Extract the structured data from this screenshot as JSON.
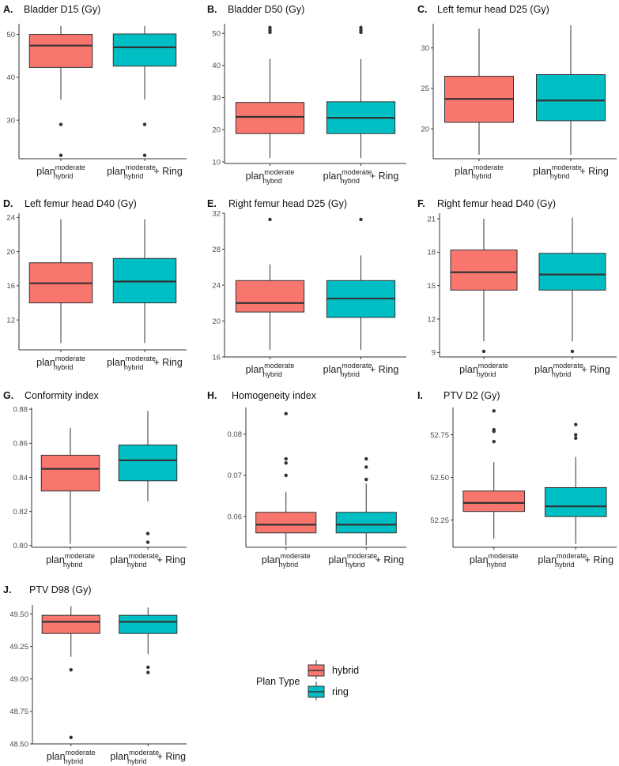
{
  "chart_data": [
    {
      "id": "A",
      "type": "box",
      "title": "Bladder D15 (Gy)",
      "ylim": [
        21,
        52.5
      ],
      "ticks": [
        30,
        40,
        50
      ],
      "groups": [
        {
          "series": "hybrid",
          "q1": 42.3,
          "median": 47.4,
          "q3": 50.0,
          "lower": 34.8,
          "upper": 52.0,
          "outliers": [
            29.0,
            21.8
          ]
        },
        {
          "series": "ring",
          "q1": 42.6,
          "median": 47.0,
          "q3": 50.1,
          "lower": 34.8,
          "upper": 52.0,
          "outliers": [
            29.0,
            21.8
          ]
        }
      ]
    },
    {
      "id": "B",
      "type": "box",
      "title": "Bladder D50 (Gy)",
      "ylim": [
        9.5,
        53
      ],
      "ticks": [
        10,
        20,
        30,
        40,
        50
      ],
      "groups": [
        {
          "series": "hybrid",
          "q1": 18.8,
          "median": 24.0,
          "q3": 28.5,
          "lower": 11.2,
          "upper": 42.0,
          "outliers": [
            50.3,
            51.0,
            51.8
          ]
        },
        {
          "series": "ring",
          "q1": 18.8,
          "median": 23.7,
          "q3": 28.7,
          "lower": 11.2,
          "upper": 42.0,
          "outliers": [
            50.3,
            51.0,
            51.8
          ]
        }
      ]
    },
    {
      "id": "C",
      "type": "box",
      "title": "Left femur head D25 (Gy)",
      "ylim": [
        16.3,
        33
      ],
      "ticks": [
        20,
        25,
        30
      ],
      "groups": [
        {
          "series": "hybrid",
          "q1": 20.8,
          "median": 23.7,
          "q3": 26.5,
          "lower": 16.8,
          "upper": 32.4,
          "outliers": []
        },
        {
          "series": "ring",
          "q1": 21.0,
          "median": 23.5,
          "q3": 26.7,
          "lower": 16.8,
          "upper": 32.8,
          "outliers": []
        }
      ]
    },
    {
      "id": "D",
      "type": "box",
      "title": "Left femur head D40 (Gy)",
      "ylim": [
        8.5,
        24.5
      ],
      "ticks": [
        12,
        16,
        20,
        24
      ],
      "groups": [
        {
          "series": "hybrid",
          "q1": 14.0,
          "median": 16.3,
          "q3": 18.7,
          "lower": 9.3,
          "upper": 23.8,
          "outliers": []
        },
        {
          "series": "ring",
          "q1": 14.0,
          "median": 16.5,
          "q3": 19.2,
          "lower": 9.3,
          "upper": 23.8,
          "outliers": []
        }
      ]
    },
    {
      "id": "E",
      "type": "box",
      "title": "Right femur head D25 (Gy)",
      "ylim": [
        16,
        32
      ],
      "ticks": [
        16,
        20,
        24,
        28,
        32
      ],
      "groups": [
        {
          "series": "hybrid",
          "q1": 21.0,
          "median": 22.0,
          "q3": 24.5,
          "lower": 16.8,
          "upper": 26.3,
          "outliers": [
            31.3
          ]
        },
        {
          "series": "ring",
          "q1": 20.4,
          "median": 22.5,
          "q3": 24.5,
          "lower": 16.8,
          "upper": 27.3,
          "outliers": [
            31.3
          ]
        }
      ]
    },
    {
      "id": "F",
      "type": "box",
      "title": "Right femur head D40 (Gy)",
      "ylim": [
        8.6,
        21.5
      ],
      "ticks": [
        9,
        12,
        15,
        18,
        21
      ],
      "groups": [
        {
          "series": "hybrid",
          "q1": 14.6,
          "median": 16.2,
          "q3": 18.2,
          "lower": 10.0,
          "upper": 21.0,
          "outliers": [
            9.1
          ]
        },
        {
          "series": "ring",
          "q1": 14.6,
          "median": 16.0,
          "q3": 17.9,
          "lower": 10.0,
          "upper": 21.1,
          "outliers": [
            9.1
          ]
        }
      ]
    },
    {
      "id": "G",
      "type": "box",
      "title": "Conformity index",
      "ylim": [
        0.799,
        0.881
      ],
      "ticks": [
        0.8,
        0.82,
        0.84,
        0.86,
        0.88
      ],
      "groups": [
        {
          "series": "hybrid",
          "q1": 0.832,
          "median": 0.845,
          "q3": 0.853,
          "lower": 0.801,
          "upper": 0.869,
          "outliers": []
        },
        {
          "series": "ring",
          "q1": 0.838,
          "median": 0.85,
          "q3": 0.859,
          "lower": 0.826,
          "upper": 0.879,
          "outliers": [
            0.807,
            0.802
          ]
        }
      ]
    },
    {
      "id": "H",
      "type": "box",
      "title": "Homogeneity index",
      "ylim": [
        0.0525,
        0.0865
      ],
      "ticks": [
        0.06,
        0.07,
        0.08
      ],
      "groups": [
        {
          "series": "hybrid",
          "q1": 0.056,
          "median": 0.058,
          "q3": 0.061,
          "lower": 0.053,
          "upper": 0.066,
          "outliers": [
            0.07,
            0.073,
            0.074,
            0.085
          ]
        },
        {
          "series": "ring",
          "q1": 0.056,
          "median": 0.058,
          "q3": 0.061,
          "lower": 0.053,
          "upper": 0.068,
          "outliers": [
            0.069,
            0.072,
            0.074
          ]
        }
      ]
    },
    {
      "id": "I",
      "type": "box",
      "title": "PTV D2 (Gy)",
      "ylim": [
        52.09,
        52.91
      ],
      "ticks": [
        52.25,
        52.5,
        52.75
      ],
      "groups": [
        {
          "series": "hybrid",
          "q1": 52.3,
          "median": 52.35,
          "q3": 52.42,
          "lower": 52.14,
          "upper": 52.59,
          "outliers": [
            52.71,
            52.77,
            52.78,
            52.89
          ]
        },
        {
          "series": "ring",
          "q1": 52.27,
          "median": 52.33,
          "q3": 52.44,
          "lower": 52.11,
          "upper": 52.62,
          "outliers": [
            52.73,
            52.75,
            52.81
          ]
        }
      ]
    },
    {
      "id": "J",
      "type": "box",
      "title": "PTV D98 (Gy)",
      "ylim": [
        48.5,
        49.57
      ],
      "ticks": [
        48.5,
        48.75,
        49.0,
        49.25,
        49.5
      ],
      "groups": [
        {
          "series": "hybrid",
          "q1": 49.35,
          "median": 49.44,
          "q3": 49.49,
          "lower": 49.17,
          "upper": 49.56,
          "outliers": [
            49.07,
            48.55
          ]
        },
        {
          "series": "ring",
          "q1": 49.35,
          "median": 49.44,
          "q3": 49.49,
          "lower": 49.19,
          "upper": 49.55,
          "outliers": [
            49.09,
            49.05
          ]
        }
      ]
    }
  ],
  "x_axis": {
    "group1": {
      "main": "plan",
      "sup": "moderate",
      "sub": "hybrid",
      "suffix": ""
    },
    "group2": {
      "main": "plan",
      "sup": "moderate",
      "sub": "hybrid",
      "suffix": "+ Ring"
    }
  },
  "legend": {
    "title": "Plan Type",
    "items": [
      {
        "series": "hybrid",
        "label": "hybrid",
        "color": "#f8766d"
      },
      {
        "series": "ring",
        "label": "ring",
        "color": "#00bfc4"
      }
    ]
  },
  "colors": {
    "hybrid": "#f8766d",
    "ring": "#00bfc4",
    "axis": "#333333",
    "median": "#333333"
  }
}
